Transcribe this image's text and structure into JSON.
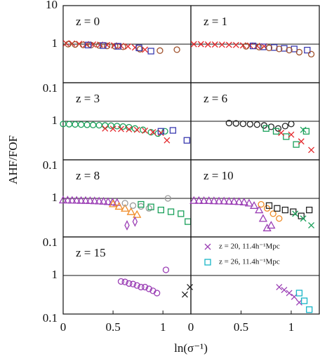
{
  "figure": {
    "ylabel": "AHF/FOF",
    "xlabel": "ln(σ⁻¹)"
  },
  "chart_data": [
    {
      "type": "scatter",
      "label": "z = 0",
      "xlim": [
        0,
        1.28
      ],
      "ylim": [
        0.1,
        10
      ],
      "log_y": true,
      "yticks": [
        0.1,
        1,
        10
      ],
      "hline": 1,
      "series": [
        {
          "color": "#e3262a",
          "marker": "x",
          "x": [
            0.03,
            0.09,
            0.16,
            0.23,
            0.3,
            0.37,
            0.44,
            0.51,
            0.58,
            0.65,
            0.72,
            0.82
          ],
          "values": [
            1.05,
            1.04,
            1.02,
            1.0,
            0.98,
            0.97,
            0.95,
            0.93,
            0.9,
            0.87,
            0.82,
            0.72
          ]
        },
        {
          "color": "#a0522d",
          "marker": "circle",
          "x": [
            0.05,
            0.12,
            0.2,
            0.28,
            0.36,
            0.44,
            0.52,
            0.6,
            0.77,
            0.97,
            1.14
          ],
          "values": [
            1.0,
            0.98,
            0.96,
            0.95,
            0.93,
            0.9,
            0.88,
            0.85,
            0.74,
            0.68,
            0.72
          ]
        },
        {
          "color": "#3a3ab0",
          "marker": "square",
          "x": [
            0.25,
            0.4,
            0.55,
            0.76,
            0.88
          ],
          "values": [
            0.95,
            0.92,
            0.88,
            0.8,
            0.66
          ]
        }
      ]
    },
    {
      "type": "scatter",
      "label": "z = 1",
      "xlim": [
        0,
        1.28
      ],
      "ylim": [
        0.1,
        10
      ],
      "log_y": true,
      "hline": 1,
      "series": [
        {
          "color": "#e3262a",
          "marker": "x",
          "x": [
            0.03,
            0.1,
            0.17,
            0.24,
            0.31,
            0.38,
            0.45,
            0.52,
            0.59,
            0.66,
            0.73
          ],
          "values": [
            1.0,
            1.0,
            0.98,
            0.98,
            0.97,
            0.96,
            0.95,
            0.93,
            0.92,
            0.9,
            0.88
          ]
        },
        {
          "color": "#3a3ab0",
          "marker": "square",
          "x": [
            0.62,
            0.72,
            0.83,
            0.93,
            1.03,
            1.16
          ],
          "values": [
            0.9,
            0.85,
            0.82,
            0.78,
            0.75,
            0.7
          ]
        },
        {
          "color": "#a0522d",
          "marker": "circle",
          "x": [
            0.55,
            0.68,
            0.78,
            0.88,
            0.98,
            1.08,
            1.2
          ],
          "values": [
            0.88,
            0.84,
            0.8,
            0.75,
            0.7,
            0.62,
            0.55
          ]
        }
      ]
    },
    {
      "type": "scatter",
      "label": "z = 3",
      "xlim": [
        0,
        1.28
      ],
      "ylim": [
        0.1,
        10
      ],
      "log_y": true,
      "yticks": [
        0.1,
        1
      ],
      "hline": 1,
      "series": [
        {
          "color": "#1aa05a",
          "marker": "circle",
          "x": [
            0.0,
            0.06,
            0.12,
            0.18,
            0.24,
            0.3,
            0.36,
            0.42,
            0.48,
            0.54,
            0.6,
            0.66,
            0.72,
            0.8,
            0.88,
            0.95,
            1.02
          ],
          "values": [
            0.85,
            0.84,
            0.83,
            0.82,
            0.81,
            0.8,
            0.79,
            0.78,
            0.77,
            0.75,
            0.73,
            0.7,
            0.65,
            0.6,
            0.52,
            0.48,
            0.55
          ]
        },
        {
          "color": "#e3262a",
          "marker": "x",
          "x": [
            0.42,
            0.5,
            0.58,
            0.66,
            0.74,
            0.82,
            0.9,
            0.98,
            1.04
          ],
          "values": [
            0.65,
            0.64,
            0.63,
            0.62,
            0.6,
            0.57,
            0.52,
            0.5,
            0.32
          ]
        },
        {
          "color": "#3a3ab0",
          "marker": "square",
          "x": [
            0.98,
            1.1,
            1.24
          ],
          "values": [
            0.55,
            0.58,
            0.32
          ]
        }
      ]
    },
    {
      "type": "scatter",
      "label": "z = 6",
      "xlim": [
        0,
        1.28
      ],
      "ylim": [
        0.1,
        10
      ],
      "log_y": true,
      "hline": 1,
      "series": [
        {
          "color": "#222222",
          "marker": "circle",
          "x": [
            0.38,
            0.45,
            0.52,
            0.59,
            0.66,
            0.73,
            0.8,
            0.87,
            0.94,
            1.0
          ],
          "values": [
            0.9,
            0.88,
            0.86,
            0.84,
            0.82,
            0.78,
            0.72,
            0.65,
            0.75,
            0.85
          ]
        },
        {
          "color": "#1aa05a",
          "marker": "square",
          "x": [
            0.75,
            0.85,
            0.95,
            1.05,
            1.15
          ],
          "values": [
            0.65,
            0.55,
            0.4,
            0.25,
            0.55
          ]
        },
        {
          "color": "#e3262a",
          "marker": "x",
          "x": [
            0.9,
            1.0,
            1.1,
            1.2
          ],
          "values": [
            0.5,
            0.45,
            0.3,
            0.18
          ]
        },
        {
          "color": "#1aa05a",
          "marker": "x",
          "x": [
            1.12
          ],
          "values": [
            0.6
          ]
        }
      ]
    },
    {
      "type": "scatter",
      "label": "z = 8",
      "xlim": [
        0,
        1.28
      ],
      "ylim": [
        0.1,
        10
      ],
      "log_y": true,
      "yticks": [
        0.1,
        1
      ],
      "hline": 1,
      "series": [
        {
          "color": "#9b3fb5",
          "marker": "triangle",
          "x": [
            0.0,
            0.045,
            0.09,
            0.135,
            0.18,
            0.225,
            0.27,
            0.315,
            0.36,
            0.405,
            0.45,
            0.495,
            0.54
          ],
          "values": [
            0.9,
            0.9,
            0.89,
            0.89,
            0.88,
            0.88,
            0.87,
            0.86,
            0.85,
            0.84,
            0.82,
            0.8,
            0.78
          ]
        },
        {
          "color": "#f08a24",
          "marker": "triangle",
          "x": [
            0.5,
            0.56,
            0.62,
            0.68,
            0.74
          ],
          "values": [
            0.72,
            0.62,
            0.55,
            0.45,
            0.38
          ]
        },
        {
          "color": "#999999",
          "marker": "circle",
          "x": [
            0.62,
            0.7,
            0.78,
            0.86,
            1.05
          ],
          "values": [
            0.75,
            0.65,
            0.62,
            0.55,
            1.0
          ]
        },
        {
          "color": "#1aa05a",
          "marker": "square",
          "x": [
            0.78,
            0.88,
            0.98,
            1.08,
            1.18,
            1.25
          ],
          "values": [
            0.7,
            0.6,
            0.5,
            0.45,
            0.4,
            0.25
          ]
        },
        {
          "color": "#9b3fb5",
          "marker": "diamond",
          "x": [
            0.64,
            0.72
          ],
          "values": [
            0.2,
            0.25
          ]
        }
      ]
    },
    {
      "type": "scatter",
      "label": "z = 10",
      "xlim": [
        0,
        1.28
      ],
      "ylim": [
        0.1,
        10
      ],
      "log_y": true,
      "hline": 1,
      "series": [
        {
          "color": "#9b3fb5",
          "marker": "triangle",
          "x": [
            0.03,
            0.08,
            0.13,
            0.18,
            0.23,
            0.28,
            0.33,
            0.38,
            0.43,
            0.48,
            0.53,
            0.58,
            0.63,
            0.68,
            0.72,
            0.76,
            0.8
          ],
          "values": [
            0.88,
            0.88,
            0.87,
            0.87,
            0.86,
            0.85,
            0.85,
            0.84,
            0.83,
            0.82,
            0.8,
            0.75,
            0.65,
            0.5,
            0.3,
            0.17,
            0.2
          ]
        },
        {
          "color": "#f08a24",
          "marker": "circle",
          "x": [
            0.7,
            0.76,
            0.82,
            0.88
          ],
          "values": [
            0.7,
            0.55,
            0.4,
            0.3
          ]
        },
        {
          "color": "#222222",
          "marker": "square",
          "x": [
            0.78,
            0.86,
            0.94,
            1.02,
            1.1,
            1.18
          ],
          "values": [
            0.65,
            0.55,
            0.5,
            0.45,
            0.35,
            0.5
          ]
        },
        {
          "color": "#1aa05a",
          "marker": "x",
          "x": [
            1.04,
            1.12,
            1.2
          ],
          "values": [
            0.4,
            0.3,
            0.2
          ]
        }
      ]
    },
    {
      "type": "scatter",
      "label": "z = 15",
      "xlim": [
        0,
        1.28
      ],
      "ylim": [
        0.1,
        10
      ],
      "log_y": true,
      "yticks": [
        0.1,
        1
      ],
      "xticks": [
        0,
        0.5,
        1
      ],
      "hline": 1,
      "series": [
        {
          "color": "#9b3fb5",
          "marker": "circle",
          "x": [
            0.58,
            0.62,
            0.66,
            0.7,
            0.74,
            0.78,
            0.82,
            0.86,
            0.9,
            0.94,
            1.03
          ],
          "values": [
            0.7,
            0.68,
            0.62,
            0.6,
            0.55,
            0.5,
            0.5,
            0.45,
            0.4,
            0.35,
            1.4
          ]
        },
        {
          "color": "#222222",
          "marker": "x",
          "x": [
            1.27,
            1.22
          ],
          "values": [
            0.5,
            0.32
          ]
        }
      ]
    },
    {
      "type": "scatter",
      "xlim": [
        0,
        1.28
      ],
      "ylim": [
        0.1,
        10
      ],
      "log_y": true,
      "xticks": [
        0,
        0.5,
        1
      ],
      "hline": 1,
      "legend": "upper right",
      "series": [
        {
          "name": "z = 20, 11.4h⁻¹Mpc",
          "color": "#9b3fb5",
          "marker": "x",
          "x": [
            0.88,
            0.93,
            0.98,
            1.03,
            1.08
          ],
          "values": [
            0.5,
            0.42,
            0.35,
            0.28,
            0.2
          ]
        },
        {
          "name": "z = 26, 11.4h⁻¹Mpc",
          "color": "#17b5c7",
          "marker": "square",
          "x": [
            1.08,
            1.13,
            1.18
          ],
          "values": [
            0.35,
            0.22,
            0.13
          ]
        }
      ]
    }
  ]
}
